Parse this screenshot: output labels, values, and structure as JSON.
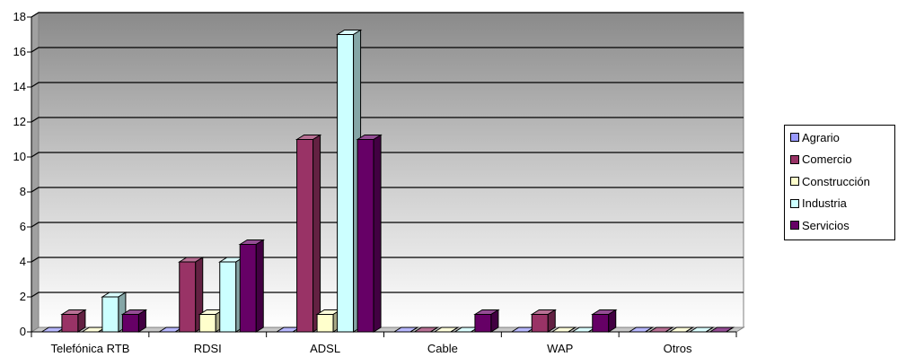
{
  "chart_data": {
    "type": "bar",
    "categories": [
      "Telefónica RTB",
      "RDSI",
      "ADSL",
      "Cable",
      "WAP",
      "Otros"
    ],
    "series": [
      {
        "name": "Agrario",
        "values": [
          0,
          0,
          0,
          0,
          0,
          0
        ],
        "color": "#9999ff"
      },
      {
        "name": "Comercio",
        "values": [
          1,
          4,
          11,
          0,
          1,
          0
        ],
        "color": "#993366"
      },
      {
        "name": "Construcción",
        "values": [
          0,
          1,
          1,
          0,
          0,
          0
        ],
        "color": "#ffffcc"
      },
      {
        "name": "Industria",
        "values": [
          2,
          4,
          17,
          0,
          0,
          0
        ],
        "color": "#ccffff"
      },
      {
        "name": "Servicios",
        "values": [
          1,
          5,
          11,
          1,
          1,
          0
        ],
        "color": "#660066"
      }
    ],
    "yticks": [
      0,
      2,
      4,
      6,
      8,
      10,
      12,
      14,
      16,
      18
    ],
    "ylim": [
      0,
      18
    ],
    "title": "",
    "xlabel": "",
    "ylabel": "",
    "grid": true,
    "legend_position": "right",
    "three_d": true
  }
}
